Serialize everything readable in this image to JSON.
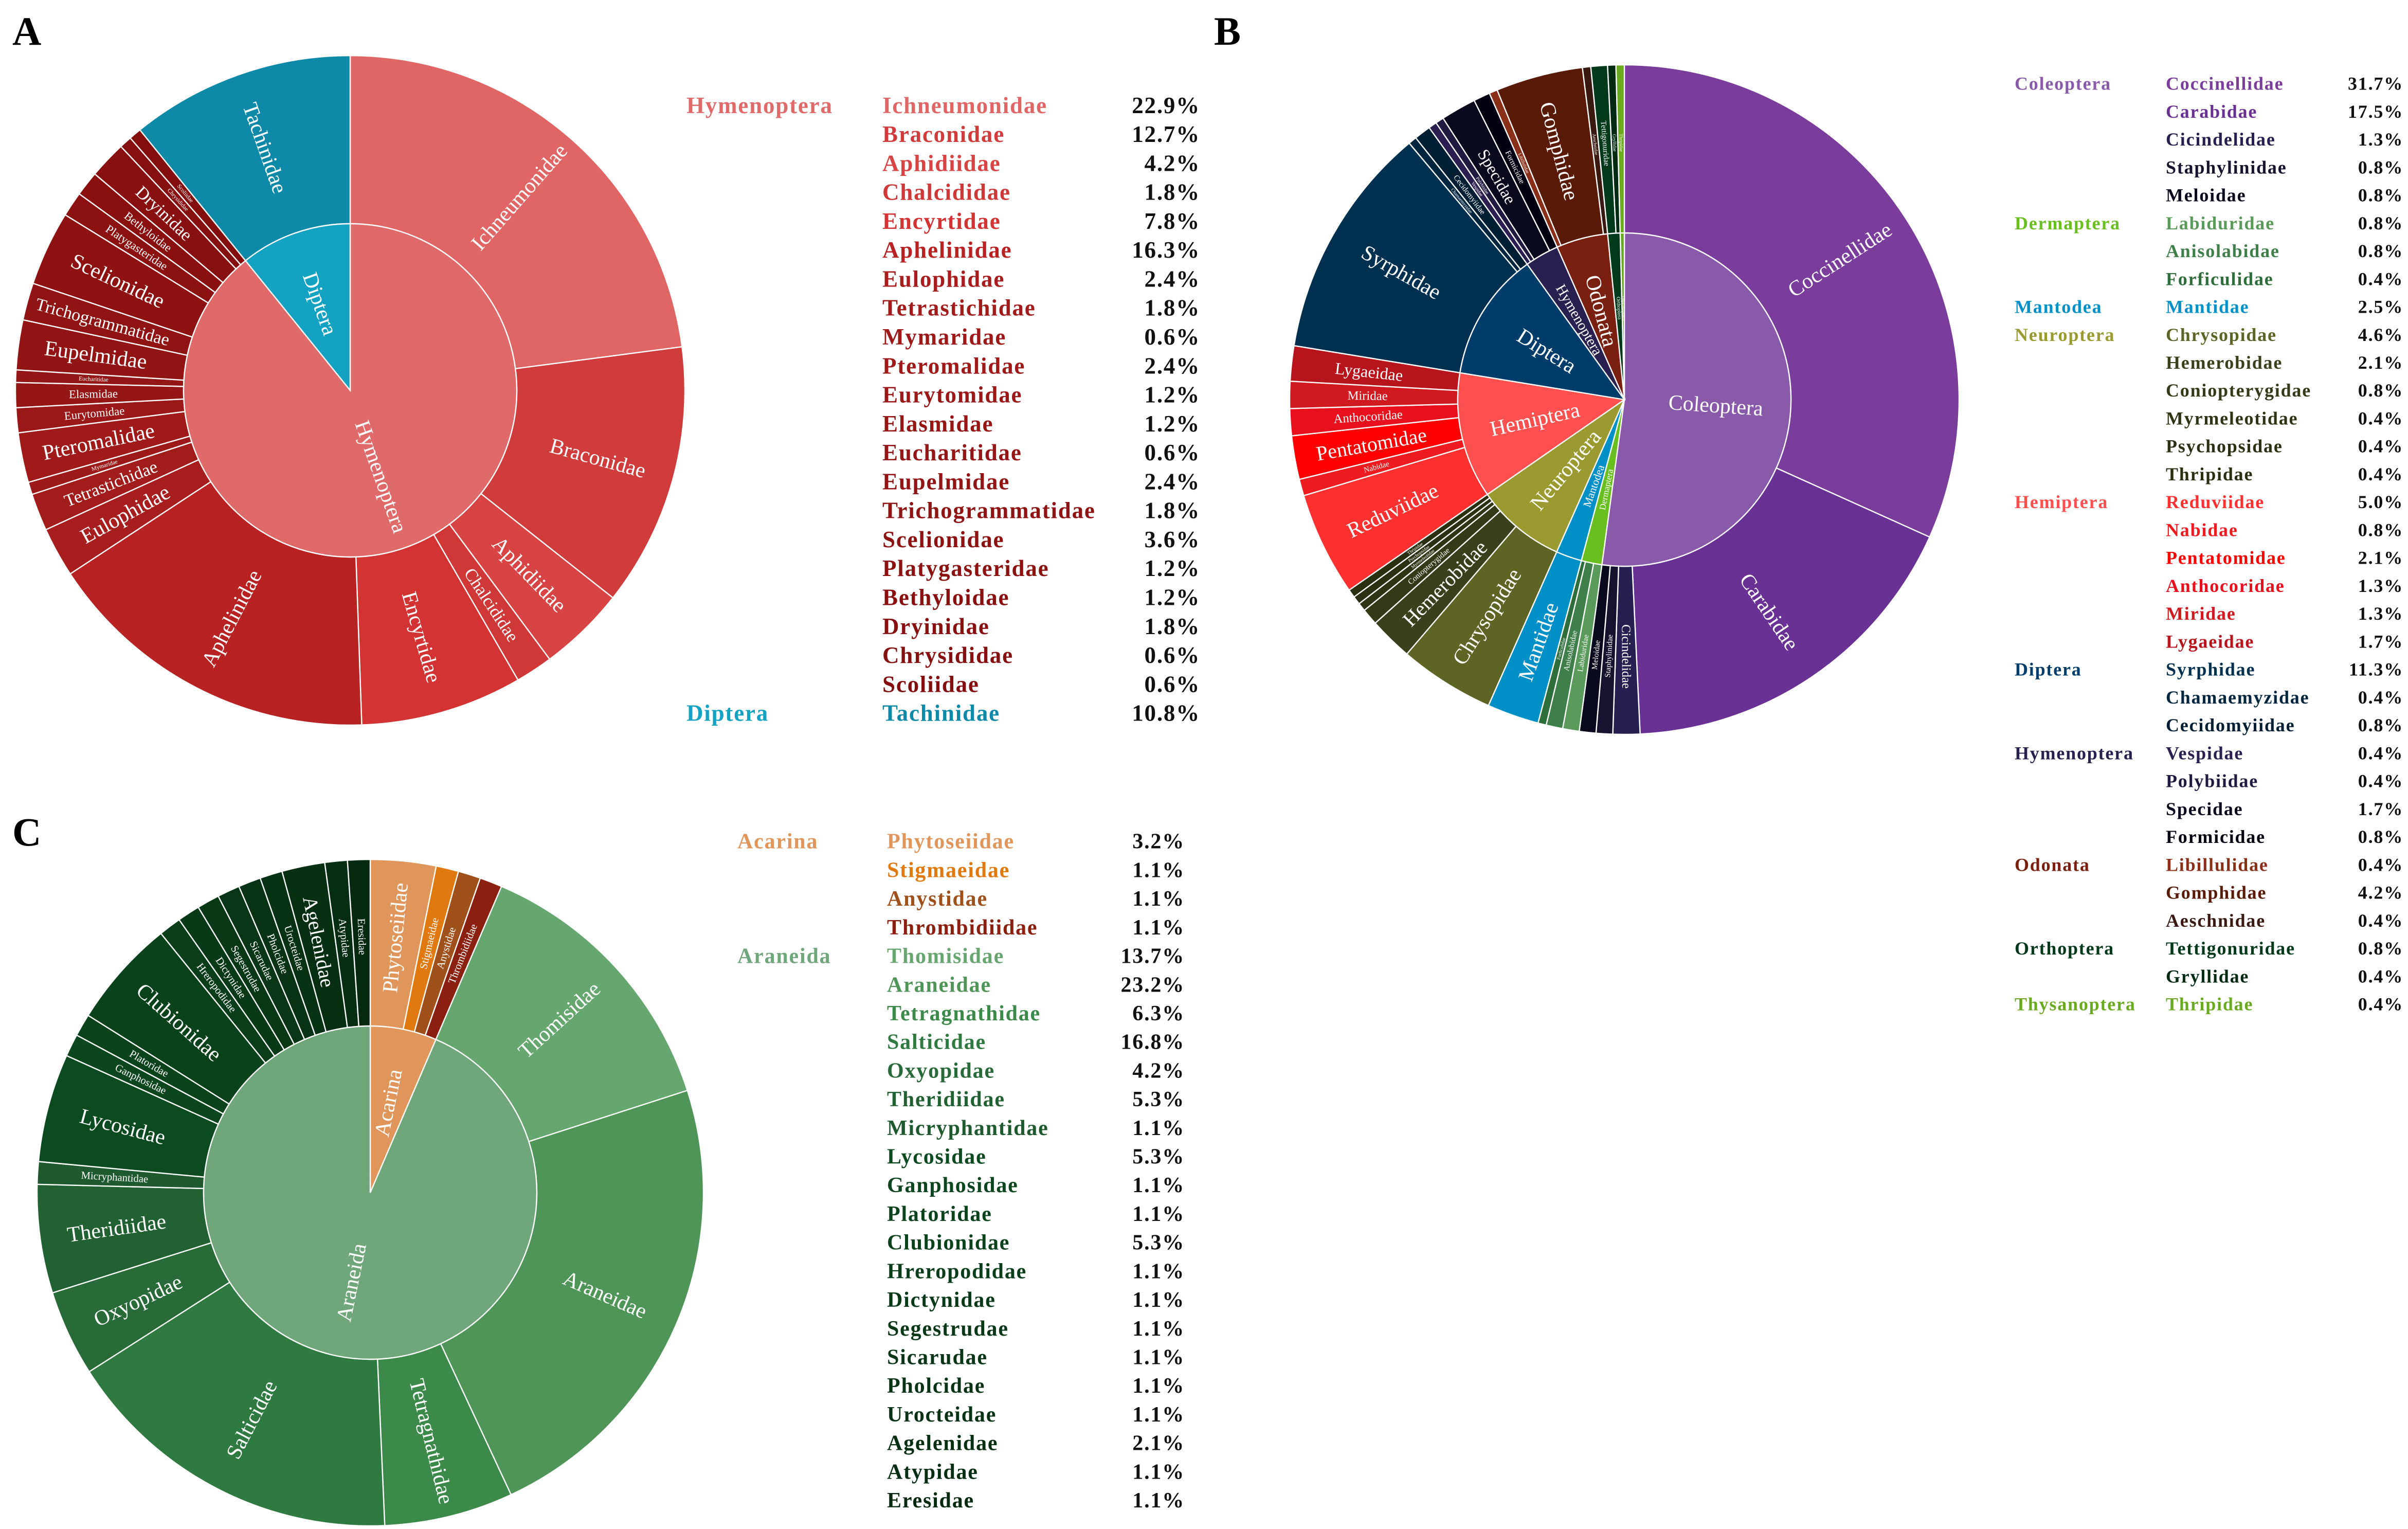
{
  "panels": {
    "a": "A",
    "b": "B",
    "c": "C"
  },
  "chart_data": [
    {
      "type": "pie",
      "panel": "A",
      "groups": [
        {
          "order": "Hymenoptera",
          "color": "#e06a6a",
          "families": [
            {
              "name": "Ichneumonidae",
              "value": 22.9,
              "color": "#e06666"
            },
            {
              "name": "Braconidae",
              "value": 12.7,
              "color": "#d03c3c"
            },
            {
              "name": "Aphidiidae",
              "value": 4.2,
              "color": "#d84444"
            },
            {
              "name": "Chalcididae",
              "value": 1.8,
              "color": "#d03838"
            },
            {
              "name": "Encyrtidae",
              "value": 7.8,
              "color": "#d33333"
            },
            {
              "name": "Aphelinidae",
              "value": 16.3,
              "color": "#b82222"
            },
            {
              "name": "Eulophidae",
              "value": 2.4,
              "color": "#a81e1e"
            },
            {
              "name": "Tetrastichidae",
              "value": 1.8,
              "color": "#a21c1c"
            },
            {
              "name": "Mymaridae",
              "value": 0.6,
              "color": "#9e1a1a"
            },
            {
              "name": "Pteromalidae",
              "value": 2.4,
              "color": "#a01a1a"
            },
            {
              "name": "Eurytomidae",
              "value": 1.2,
              "color": "#9a1818"
            },
            {
              "name": "Elasmidae",
              "value": 1.2,
              "color": "#961616"
            },
            {
              "name": "Eucharitidae",
              "value": 0.6,
              "color": "#941616"
            },
            {
              "name": "Eupelmidae",
              "value": 2.4,
              "color": "#921414"
            },
            {
              "name": "Trichogrammatidae",
              "value": 1.8,
              "color": "#901414"
            },
            {
              "name": "Scelionidae",
              "value": 3.6,
              "color": "#8e1212"
            },
            {
              "name": "Platygasteridae",
              "value": 1.2,
              "color": "#8c1212"
            },
            {
              "name": "Bethyloidae",
              "value": 1.2,
              "color": "#8a1010"
            },
            {
              "name": "Dryinidae",
              "value": 1.8,
              "color": "#881010"
            },
            {
              "name": "Chrysididae",
              "value": 0.6,
              "color": "#861010"
            },
            {
              "name": "Scoliidae",
              "value": 0.6,
              "color": "#840e0e"
            }
          ]
        },
        {
          "order": "Diptera",
          "color": "#14a2c2",
          "families": [
            {
              "name": "Tachinidae",
              "value": 10.8,
              "color": "#0e8aa8"
            }
          ]
        }
      ]
    },
    {
      "type": "pie",
      "panel": "B",
      "groups": [
        {
          "order": "Coleoptera",
          "color": "#8a5aaa",
          "families": [
            {
              "name": "Coccinellidae",
              "value": 31.7,
              "color": "#7b3d9c"
            },
            {
              "name": "Carabidae",
              "value": 17.5,
              "color": "#6a3194"
            },
            {
              "name": "Cicindelidae",
              "value": 1.3,
              "color": "#252050"
            },
            {
              "name": "Staphylinidae",
              "value": 0.8,
              "color": "#15132e"
            },
            {
              "name": "Meloidae",
              "value": 0.8,
              "color": "#0a0a1e"
            }
          ]
        },
        {
          "order": "Dermaptera",
          "color": "#6abf20",
          "families": [
            {
              "name": "Labiduridae",
              "value": 0.8,
              "color": "#5a9a5a"
            },
            {
              "name": "Anisolabidae",
              "value": 0.8,
              "color": "#3f7f4a"
            },
            {
              "name": "Forficulidae",
              "value": 0.4,
              "color": "#2e6e3a"
            }
          ]
        },
        {
          "order": "Mantodea",
          "color": "#0090c8",
          "families": [
            {
              "name": "Mantidae",
              "value": 2.5,
              "color": "#0090c8"
            }
          ]
        },
        {
          "order": "Neuroptera",
          "color": "#9a9a30",
          "families": [
            {
              "name": "Chrysopidae",
              "value": 4.6,
              "color": "#5e6424"
            },
            {
              "name": "Hemerobidae",
              "value": 2.1,
              "color": "#3a401c"
            },
            {
              "name": "Coniopterygidae",
              "value": 0.8,
              "color": "#343a18"
            },
            {
              "name": "Myrmeleotidae",
              "value": 0.4,
              "color": "#2e3515"
            },
            {
              "name": "Psychopsidae",
              "value": 0.4,
              "color": "#2a3012"
            },
            {
              "name": "Thripidae",
              "value": 0.4,
              "color": "#283010"
            }
          ]
        },
        {
          "order": "Hemiptera",
          "color": "#ff5050",
          "families": [
            {
              "name": "Reduviidae",
              "value": 5.0,
              "color": "#ff3030"
            },
            {
              "name": "Nabidae",
              "value": 0.8,
              "color": "#ee1c20"
            },
            {
              "name": "Pentatomidae",
              "value": 2.1,
              "color": "#ff0000"
            },
            {
              "name": "Anthocoridae",
              "value": 1.3,
              "color": "#e8101c"
            },
            {
              "name": "Miridae",
              "value": 1.3,
              "color": "#d01a20"
            },
            {
              "name": "Lygaeidae",
              "value": 1.7,
              "color": "#b8141c"
            }
          ]
        },
        {
          "order": "Diptera",
          "color": "#003d6a",
          "families": [
            {
              "name": "Syrphidae",
              "value": 11.3,
              "color": "#003050"
            },
            {
              "name": "Chamaemyzidae",
              "value": 0.4,
              "color": "#00263f"
            },
            {
              "name": "Cecidomyiidae",
              "value": 0.8,
              "color": "#001f35"
            }
          ]
        },
        {
          "order": "Hymenoptera",
          "color": "#2a2050",
          "families": [
            {
              "name": "Vespidae",
              "value": 0.4,
              "color": "#2a1f50"
            },
            {
              "name": "Polybiidae",
              "value": 0.4,
              "color": "#201a40"
            },
            {
              "name": "Specidae",
              "value": 1.7,
              "color": "#0a0a1e"
            },
            {
              "name": "Formicidae",
              "value": 0.8,
              "color": "#000010"
            }
          ]
        },
        {
          "order": "Odonata",
          "color": "#7a2010",
          "families": [
            {
              "name": "Libillulidae",
              "value": 0.4,
              "color": "#8a3018"
            },
            {
              "name": "Gomphidae",
              "value": 4.2,
              "color": "#5a1a08"
            },
            {
              "name": "Aeschnidae",
              "value": 0.4,
              "color": "#3a1a10"
            }
          ]
        },
        {
          "order": "Orthoptera",
          "color": "#003a1a",
          "families": [
            {
              "name": "Tettigonuridae",
              "value": 0.8,
              "color": "#003a1a"
            },
            {
              "name": "Gryllidae",
              "value": 0.4,
              "color": "#002a12"
            }
          ]
        },
        {
          "order": "Thysanoptera",
          "color": "#6aaa20",
          "families": [
            {
              "name": "Thripidae",
              "value": 0.4,
              "color": "#6aaa20"
            }
          ]
        }
      ]
    },
    {
      "type": "pie",
      "panel": "C",
      "groups": [
        {
          "order": "Acarina",
          "color": "#e0955a",
          "families": [
            {
              "name": "Phytoseiidae",
              "value": 3.2,
              "color": "#e0955a"
            },
            {
              "name": "Stigmaeidae",
              "value": 1.1,
              "color": "#e07a10"
            },
            {
              "name": "Anystidae",
              "value": 1.1,
              "color": "#a0501a"
            },
            {
              "name": "Thrombidiidae",
              "value": 1.1,
              "color": "#8b2010"
            }
          ]
        },
        {
          "order": "Araneida",
          "color": "#6fa67a",
          "families": [
            {
              "name": "Thomisidae",
              "value": 13.7,
              "color": "#66a66f"
            },
            {
              "name": "Araneidae",
              "value": 23.2,
              "color": "#4f9558"
            },
            {
              "name": "Tetragnathidae",
              "value": 6.3,
              "color": "#3c8a4a"
            },
            {
              "name": "Salticidae",
              "value": 16.8,
              "color": "#2f7a40"
            },
            {
              "name": "Oxyopidae",
              "value": 4.2,
              "color": "#286a38"
            },
            {
              "name": "Theridiidae",
              "value": 5.3,
              "color": "#226232"
            },
            {
              "name": "Micryphantidae",
              "value": 1.1,
              "color": "#1e5a2d"
            },
            {
              "name": "Lycosidae",
              "value": 5.3,
              "color": "#0c4a20"
            },
            {
              "name": "Ganphosidae",
              "value": 1.1,
              "color": "#0c461e"
            },
            {
              "name": "Platoridae",
              "value": 1.1,
              "color": "#0b441c"
            },
            {
              "name": "Clubionidae",
              "value": 5.3,
              "color": "#0a421b"
            },
            {
              "name": "Hreropodidae",
              "value": 1.1,
              "color": "#0a3e1a"
            },
            {
              "name": "Dictynidae",
              "value": 1.1,
              "color": "#093a18"
            },
            {
              "name": "Segestrudae",
              "value": 1.1,
              "color": "#093817"
            },
            {
              "name": "Sicarudae",
              "value": 1.1,
              "color": "#083616"
            },
            {
              "name": "Pholcidae",
              "value": 1.1,
              "color": "#083415"
            },
            {
              "name": "Urocteidae",
              "value": 1.1,
              "color": "#073214"
            },
            {
              "name": "Agelenidae",
              "value": 2.1,
              "color": "#073013"
            },
            {
              "name": "Atypidae",
              "value": 1.1,
              "color": "#062e12"
            },
            {
              "name": "Eresidae",
              "value": 1.1,
              "color": "#062a10"
            }
          ]
        }
      ]
    }
  ]
}
